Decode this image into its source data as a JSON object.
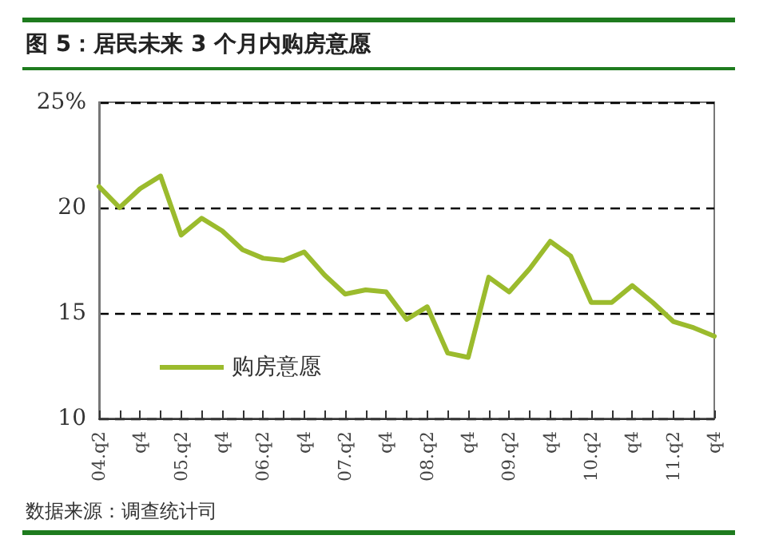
{
  "chart_data": {
    "type": "line",
    "title": "图 5：居民未来 3 个月内购房意愿",
    "categories": [
      "04.q2",
      null,
      "q4",
      null,
      "05.q2",
      null,
      "q4",
      null,
      "06.q2",
      null,
      "q4",
      null,
      "07.q2",
      null,
      "q4",
      null,
      "08.q2",
      null,
      "q4",
      null,
      "09.q2",
      null,
      "q4",
      null,
      "10.q2",
      null,
      "q4",
      null,
      "11.q2",
      null,
      "q4"
    ],
    "series": [
      {
        "name": "购房意愿",
        "color": "#9bbb2d",
        "values": [
          21.0,
          20.0,
          20.9,
          21.5,
          18.7,
          19.5,
          18.9,
          18.0,
          17.6,
          17.5,
          17.9,
          16.8,
          15.9,
          16.1,
          16.0,
          14.7,
          15.3,
          13.1,
          12.9,
          16.7,
          16.0,
          17.1,
          18.4,
          17.7,
          15.5,
          15.5,
          16.3,
          15.5,
          14.6,
          14.3,
          13.9
        ]
      }
    ],
    "ylim": [
      10,
      25
    ],
    "yticks": [
      10,
      15,
      20,
      {
        "value": 25,
        "label": "25%"
      }
    ],
    "grid": "y",
    "legend": "bottom left",
    "marker": "none",
    "line_style": "solid",
    "annotations": [
      "数据来源：调查统计司"
    ]
  }
}
